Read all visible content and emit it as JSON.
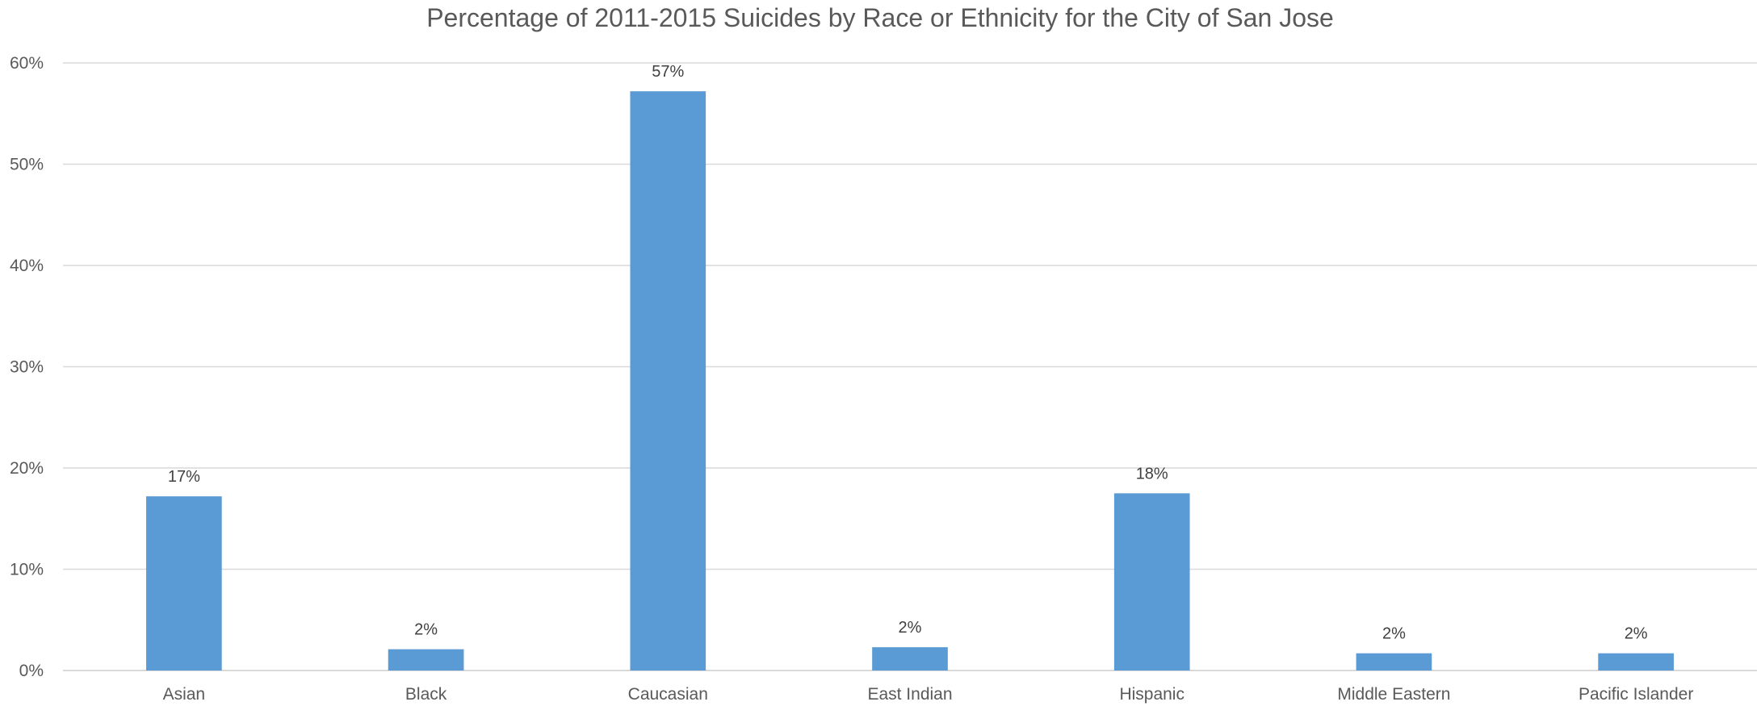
{
  "chart_data": {
    "type": "bar",
    "title": "Percentage of 2011-2015 Suicides by Race or Ethnicity for the City of San Jose",
    "xlabel": "",
    "ylabel": "",
    "categories": [
      "Asian",
      "Black",
      "Caucasian",
      "East Indian",
      "Hispanic",
      "Middle Eastern",
      "Pacific Islander"
    ],
    "values": [
      17.2,
      2.1,
      57.2,
      2.3,
      17.5,
      1.7,
      1.7
    ],
    "data_labels": [
      "17%",
      "2%",
      "57%",
      "2%",
      "18%",
      "2%",
      "2%"
    ],
    "ylim": [
      0,
      60
    ],
    "yticks": [
      0,
      10,
      20,
      30,
      40,
      50,
      60
    ],
    "ytick_labels": [
      "0%",
      "10%",
      "20%",
      "30%",
      "40%",
      "50%",
      "60%"
    ],
    "grid": true,
    "legend": "none",
    "bar_color": "#5b9bd5"
  }
}
